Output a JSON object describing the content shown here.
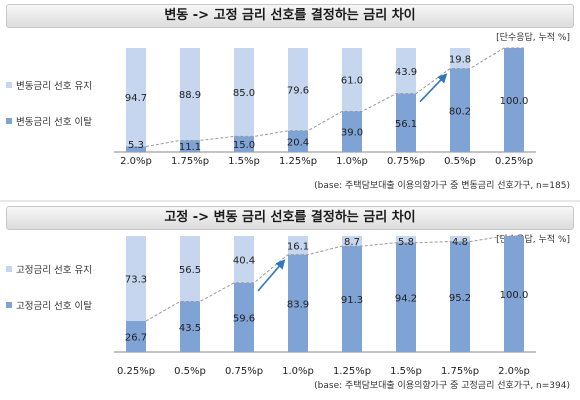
{
  "colors": {
    "keep": "#c5d6ee",
    "switch": "#7fa3d4",
    "arrow": "#2f78bd",
    "title_bg": "#e2e2e2"
  },
  "chart_data": [
    {
      "type": "bar",
      "stacked": true,
      "title": "변동 -> 고정 금리 선호를 결정하는 금리 차이",
      "unit_note": "[단수응답, 누적 %]",
      "base_note": "(base: 주택담보대출 이용의향가구 중 변동금리 선호가구, n=185)",
      "categories": [
        "2.0%p",
        "1.75%p",
        "1.5%p",
        "1.25%p",
        "1.0%p",
        "0.75%p",
        "0.5%p",
        "0.25%p"
      ],
      "series": [
        {
          "name": "변동금리 선호 이탈",
          "values": [
            5.3,
            11.1,
            15.0,
            20.4,
            39.0,
            56.1,
            80.2,
            100.0
          ]
        },
        {
          "name": "변동금리 선호 유지",
          "values": [
            94.7,
            88.9,
            85.0,
            79.6,
            61.0,
            43.9,
            19.8,
            null
          ]
        }
      ],
      "ylim": [
        0,
        100
      ]
    },
    {
      "type": "bar",
      "stacked": true,
      "title": "고정 -> 변동 금리 선호를 결정하는 금리 차이",
      "unit_note": "[단수응답, 누적 %]",
      "base_note": "(base: 주택담보대출 이용의향가구 중 고정금리 선호가구, n=394)",
      "categories": [
        "0.25%p",
        "0.5%p",
        "0.75%p",
        "1.0%p",
        "1.25%p",
        "1.5%p",
        "1.75%p",
        "2.0%p"
      ],
      "series": [
        {
          "name": "고정금리 선호 이탈",
          "values": [
            26.7,
            43.5,
            59.6,
            83.9,
            91.3,
            94.2,
            95.2,
            100.0
          ]
        },
        {
          "name": "고정금리 선호 유지",
          "values": [
            73.3,
            56.5,
            40.4,
            16.1,
            8.7,
            5.8,
            4.8,
            null
          ]
        }
      ],
      "ylim": [
        0,
        100
      ]
    }
  ]
}
